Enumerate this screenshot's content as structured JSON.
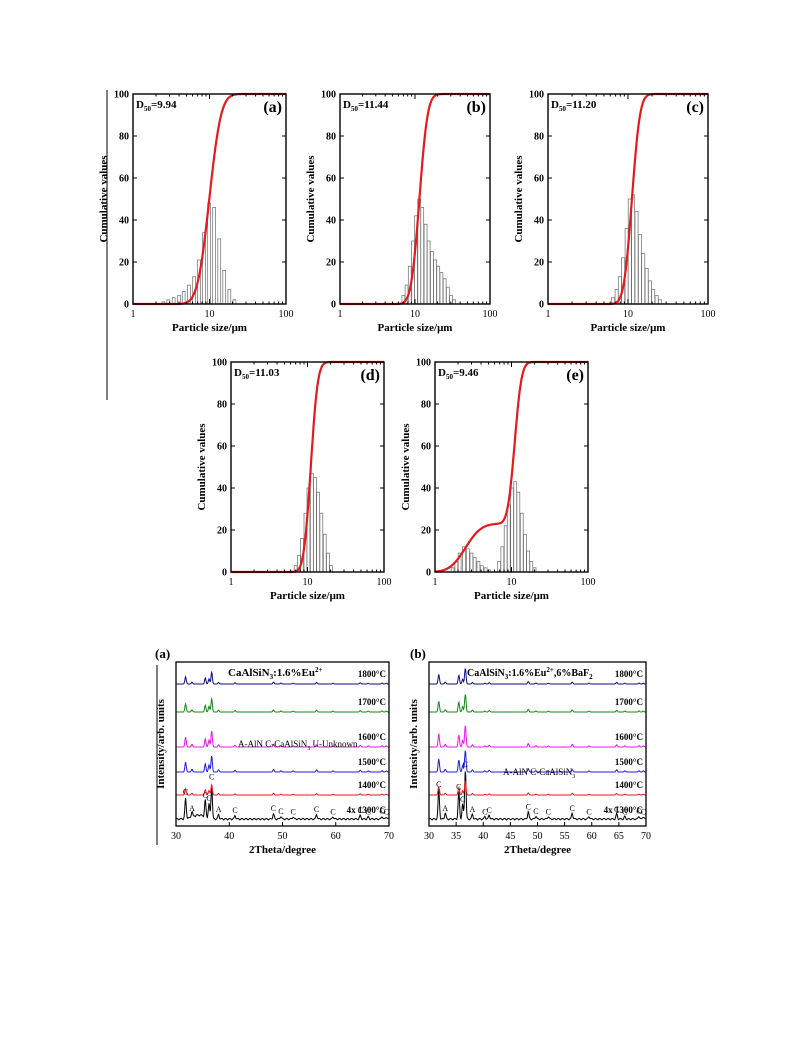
{
  "chart_data": [
    {
      "type": "histogram+line",
      "panel_label": "(a)",
      "annotation": "D50=9.94",
      "annotation_parts": {
        "base": "D",
        "sub": "50",
        "rest": "=9.94"
      },
      "xlabel": "Particle size/μm",
      "ylabel": "Cumulative values",
      "xscale": "log",
      "xlim": [
        1,
        100
      ],
      "ylim": [
        0,
        100
      ],
      "xticks": [
        "1",
        "10",
        "100"
      ],
      "yticks": [
        "0",
        "20",
        "40",
        "60",
        "80",
        "100"
      ],
      "cumulative_line_color": "#e41a1c",
      "histogram": {
        "x": [
          2.5,
          2.9,
          3.4,
          4.0,
          4.6,
          5.4,
          6.3,
          7.3,
          8.5,
          9.9,
          11.5,
          13.4,
          15.6,
          18.2,
          21.2
        ],
        "values": [
          1,
          2,
          3,
          4,
          6,
          9,
          13,
          21,
          34,
          48,
          46,
          31,
          16,
          7,
          2
        ]
      },
      "cumulative": {
        "d50": 9.94,
        "spread": 1.32
      }
    },
    {
      "type": "histogram+line",
      "panel_label": "(b)",
      "annotation": "D50=11.44",
      "annotation_parts": {
        "base": "D",
        "sub": "50",
        "rest": "=11.44"
      },
      "xlabel": "Particle size/μm",
      "ylabel": "Cumulative values",
      "xscale": "log",
      "xlim": [
        1,
        100
      ],
      "ylim": [
        0,
        100
      ],
      "xticks": [
        "1",
        "10",
        "100"
      ],
      "yticks": [
        "0",
        "20",
        "40",
        "60",
        "80",
        "100"
      ],
      "cumulative_line_color": "#e41a1c",
      "histogram": {
        "x": [
          7.0,
          7.7,
          8.5,
          9.4,
          10.3,
          11.4,
          12.5,
          13.8,
          15.2,
          16.8,
          18.5,
          20.4,
          22.5,
          24.8,
          27.4,
          30.2,
          33.3
        ],
        "values": [
          4,
          9,
          18,
          30,
          42,
          50,
          46,
          38,
          30,
          25,
          21,
          18,
          15,
          12,
          8,
          4,
          2
        ]
      },
      "cumulative": {
        "d50": 11.44,
        "spread": 1.22
      }
    },
    {
      "type": "histogram+line",
      "panel_label": "(c)",
      "annotation": "D50=11.20",
      "annotation_parts": {
        "base": "D",
        "sub": "50",
        "rest": "=11.20"
      },
      "xlabel": "Particle size/μm",
      "ylabel": "Cumulative values",
      "xscale": "log",
      "xlim": [
        1,
        100
      ],
      "ylim": [
        0,
        100
      ],
      "xticks": [
        "1",
        "10",
        "100"
      ],
      "yticks": [
        "0",
        "20",
        "40",
        "60",
        "80",
        "100"
      ],
      "cumulative_line_color": "#e41a1c",
      "histogram": {
        "x": [
          6.5,
          7.2,
          7.9,
          8.7,
          9.6,
          10.5,
          11.6,
          12.8,
          14.1,
          15.5,
          17.1,
          18.8,
          20.7,
          22.8,
          25.1
        ],
        "values": [
          3,
          7,
          13,
          22,
          36,
          50,
          52,
          44,
          33,
          24,
          17,
          11,
          7,
          4,
          2
        ]
      },
      "cumulative": {
        "d50": 11.2,
        "spread": 1.2
      }
    },
    {
      "type": "histogram+line",
      "panel_label": "(d)",
      "annotation": "D50=11.03",
      "annotation_parts": {
        "base": "D",
        "sub": "50",
        "rest": "=11.03"
      },
      "xlabel": "Particle size/μm",
      "ylabel": "Cumulative values",
      "xscale": "log",
      "xlim": [
        1,
        100
      ],
      "ylim": [
        0,
        100
      ],
      "xticks": [
        "1",
        "10",
        "100"
      ],
      "yticks": [
        "0",
        "20",
        "40",
        "60",
        "80",
        "100"
      ],
      "cumulative_line_color": "#e41a1c",
      "histogram": {
        "x": [
          7.0,
          7.7,
          8.5,
          9.4,
          10.3,
          11.4,
          12.5,
          13.8,
          15.2,
          16.8,
          18.5,
          20.4
        ],
        "values": [
          3,
          8,
          16,
          28,
          40,
          47,
          45,
          38,
          28,
          18,
          9,
          3
        ]
      },
      "cumulative": {
        "d50": 11.03,
        "spread": 1.18
      }
    },
    {
      "type": "histogram+line",
      "panel_label": "(e)",
      "annotation": "D50=9.46",
      "annotation_parts": {
        "base": "D",
        "sub": "50",
        "rest": "=9.46"
      },
      "xlabel": "Particle size/μm",
      "ylabel": "Cumulative values",
      "xscale": "log",
      "xlim": [
        1,
        100
      ],
      "ylim": [
        0,
        100
      ],
      "xticks": [
        "1",
        "10",
        "100"
      ],
      "yticks": [
        "0",
        "20",
        "40",
        "60",
        "80",
        "100"
      ],
      "cumulative_line_color": "#e41a1c",
      "histogram": {
        "x": [
          1.7,
          1.9,
          2.1,
          2.4,
          2.7,
          3.0,
          3.3,
          3.7,
          4.1,
          4.6,
          5.1,
          6.9,
          7.6,
          8.4,
          9.2,
          10.2,
          11.2,
          12.3,
          13.6,
          15.0,
          16.5,
          18.2,
          20.0
        ],
        "values": [
          2,
          5,
          9,
          12,
          11,
          9,
          7,
          5,
          3,
          2,
          1,
          5,
          12,
          22,
          32,
          40,
          43,
          38,
          28,
          18,
          10,
          5,
          2
        ]
      },
      "cumulative": {
        "bimodal": true,
        "plateau": 23,
        "d50": 9.46
      }
    },
    {
      "type": "line",
      "panel_label": "(a)",
      "title": "CaAlSiN3:1.6%Eu2+",
      "title_parts": {
        "base": "CaAlSiN",
        "sub": "3",
        "mid": ":1.6%Eu",
        "sup": "2+",
        "rest": ""
      },
      "xlabel": "2Theta/degree",
      "ylabel": "Intensity/arb. units",
      "xlim": [
        30,
        70
      ],
      "xticks": [
        "30",
        "40",
        "50",
        "60",
        "70"
      ],
      "legend_note": "A-AlN  C-CaAlSiN",
      "legend_note_parts": {
        "base": "A-AlN  C-CaAlSiN",
        "sub": "3",
        "rest": " U-Unknown"
      },
      "series": [
        {
          "name": "4x 1300°C",
          "color": "#000000"
        },
        {
          "name": "1400°C",
          "color": "#e41a1c"
        },
        {
          "name": "1500°C",
          "color": "#1f1fe0"
        },
        {
          "name": "1600°C",
          "color": "#e41ae4"
        },
        {
          "name": "1700°C",
          "color": "#138a13"
        },
        {
          "name": "1800°C",
          "color": "#0d0d80"
        }
      ],
      "peaks": [
        31.8,
        33.0,
        35.5,
        36.2,
        36.7,
        38.0,
        41.1,
        48.3,
        49.7,
        52.0,
        56.4,
        59.5,
        64.6,
        66.1,
        68.7,
        69.5
      ],
      "peak_heights": [
        0.45,
        0.12,
        0.38,
        0.32,
        0.75,
        0.1,
        0.08,
        0.12,
        0.06,
        0.05,
        0.1,
        0.05,
        0.08,
        0.05,
        0.06,
        0.05
      ],
      "peak_labels": [
        "C",
        "A",
        "C",
        "C",
        "C",
        "A",
        "C",
        "C",
        "C",
        "C",
        "C",
        "C",
        "C",
        "C",
        "C",
        "C"
      ]
    },
    {
      "type": "line",
      "panel_label": "(b)",
      "title": "CaAlSiN3:1.6%Eu2+,6%BaF2",
      "title_parts": {
        "base": "CaAlSiN",
        "sub": "3",
        "mid": ":1.6%Eu",
        "sup": "2+",
        "rest": ",6%BaF",
        "sub2": "2"
      },
      "xlabel": "2Theta/degree",
      "ylabel": "Intensity/arb. units",
      "xlim": [
        30,
        70
      ],
      "xticks": [
        "30",
        "35",
        "40",
        "45",
        "50",
        "55",
        "60",
        "65",
        "70"
      ],
      "legend_note": "A-AlN  C-CaAlSiN",
      "legend_note_parts": {
        "base": "A-AlN  C-CaAlSiN",
        "sub": "3",
        "rest": ""
      },
      "series": [
        {
          "name": "4x 1300°C",
          "color": "#000000"
        },
        {
          "name": "1400°C",
          "color": "#e41a1c"
        },
        {
          "name": "1500°C",
          "color": "#1f1fe0"
        },
        {
          "name": "1600°C",
          "color": "#e41ae4"
        },
        {
          "name": "1700°C",
          "color": "#138a13"
        },
        {
          "name": "1800°C",
          "color": "#0d0d80"
        }
      ],
      "peaks": [
        31.8,
        33.0,
        35.5,
        36.2,
        36.7,
        38.0,
        40.3,
        41.1,
        48.3,
        49.7,
        52.0,
        56.4,
        59.5,
        64.6,
        66.1,
        68.7,
        69.5
      ],
      "peak_heights": [
        0.6,
        0.12,
        0.55,
        0.3,
        1.0,
        0.1,
        0.05,
        0.08,
        0.15,
        0.06,
        0.05,
        0.12,
        0.05,
        0.1,
        0.05,
        0.06,
        0.05
      ],
      "peak_labels": [
        "C",
        "A",
        "C",
        "C",
        "C",
        "A",
        "C",
        "C",
        "C",
        "C",
        "C",
        "C",
        "C",
        "C",
        "C",
        "C",
        "C"
      ]
    }
  ]
}
